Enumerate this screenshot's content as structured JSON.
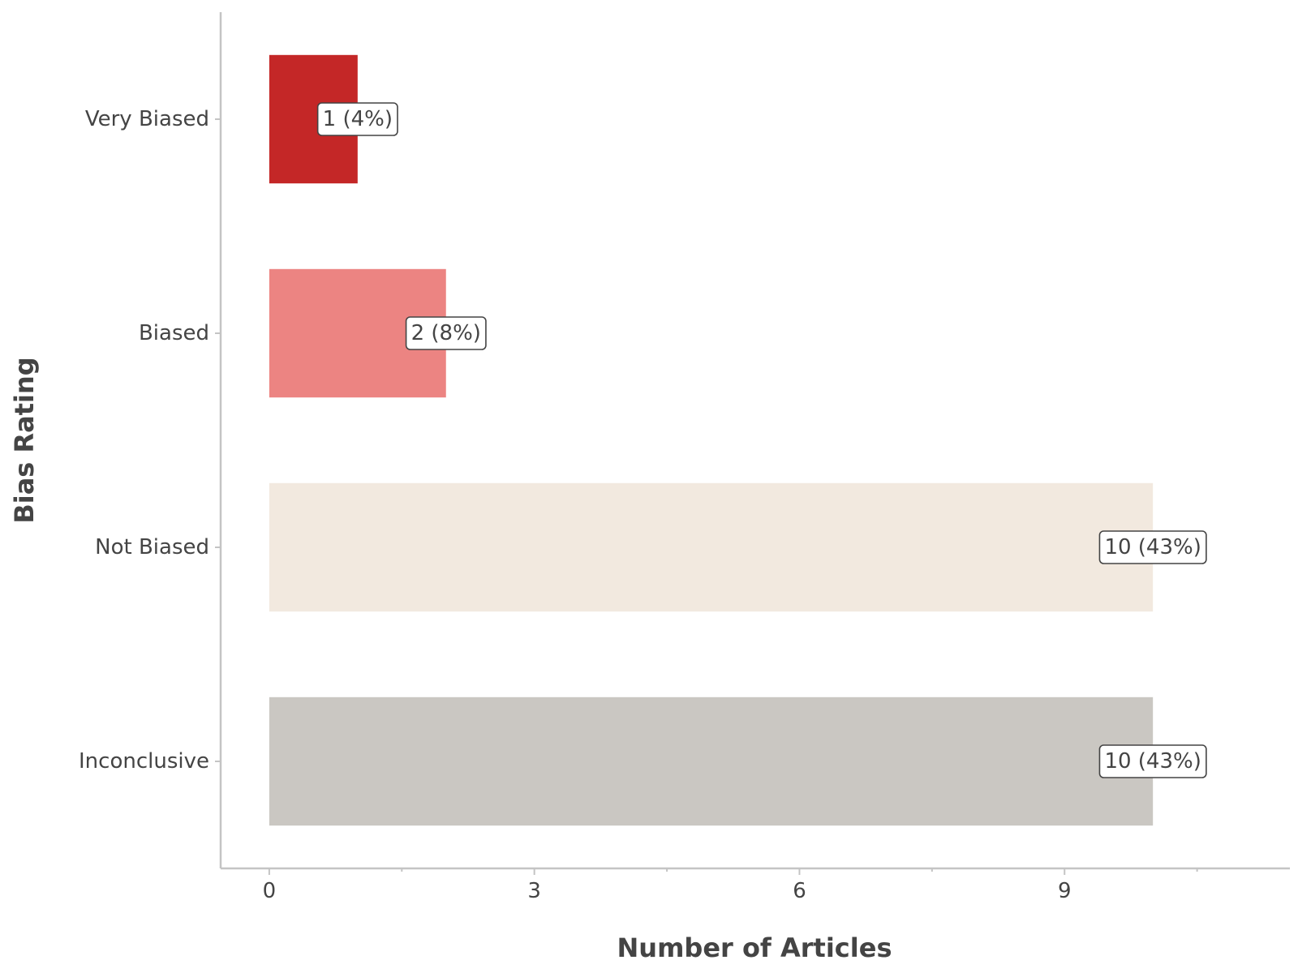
{
  "chart_data": {
    "type": "bar",
    "orientation": "horizontal",
    "categories": [
      "Very Biased",
      "Biased",
      "Not Biased",
      "Inconclusive"
    ],
    "values": [
      1,
      2,
      10,
      10
    ],
    "labels": [
      "1 (4%)",
      "2 (8%)",
      "10 (43%)",
      "10 (43%)"
    ],
    "colors": [
      "#c42727",
      "#ec8482",
      "#f2e9df",
      "#cac7c2"
    ],
    "xlabel": "Number of Articles",
    "ylabel": "Bias Rating",
    "xticks": [
      0,
      3,
      6,
      9
    ],
    "xticks_minor": [
      1.5,
      4.5,
      7.5,
      10.5
    ],
    "xlim": [
      -0.55,
      11.55
    ],
    "grid": false,
    "legend": "none"
  }
}
